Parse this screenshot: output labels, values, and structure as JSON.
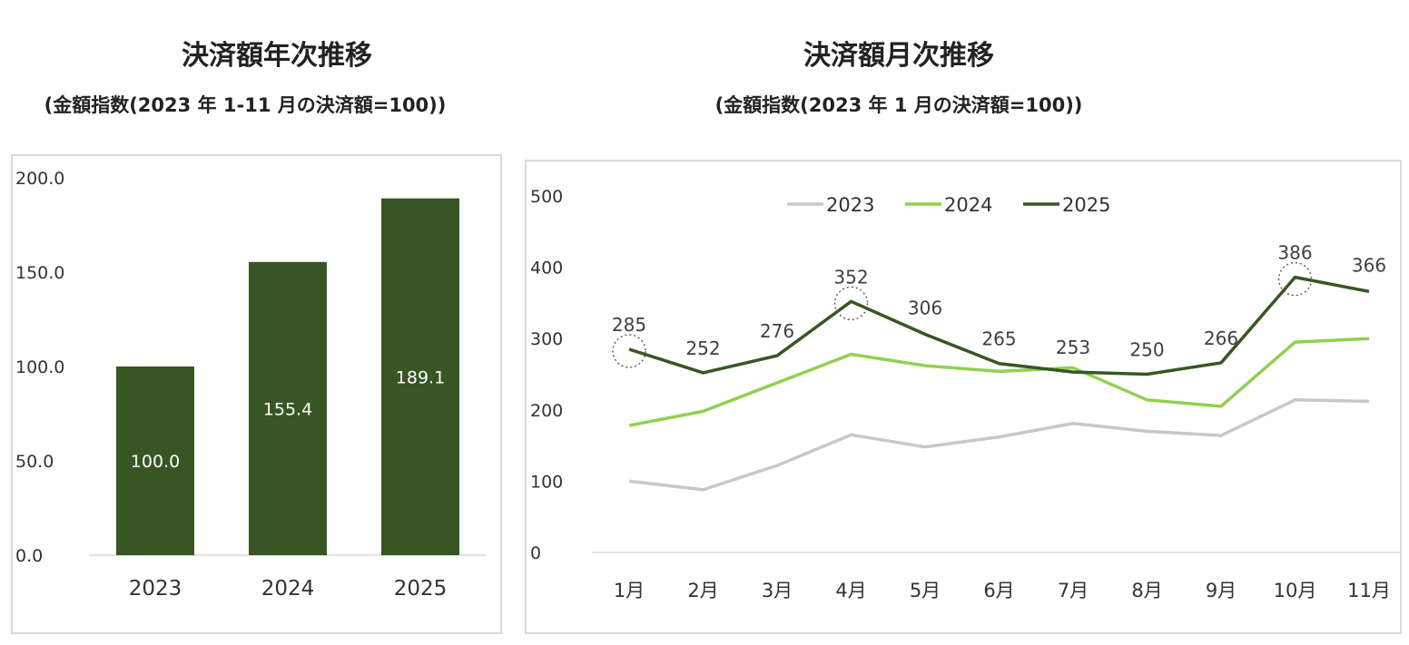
{
  "left": {
    "title": "決済額年次推移",
    "subtitle": "(金額指数(2023 年 1-11 月の決済額=100))"
  },
  "right": {
    "title": "決済額月次推移",
    "subtitle": "(金額指数(2023 年 1 月の決済額=100))"
  },
  "colors": {
    "bar": "#375623",
    "s2023": "#c8c8c8",
    "s2024": "#92d050",
    "s2025": "#375623",
    "axis": "#d9d9d9",
    "text": "#333333"
  },
  "chart_data": [
    {
      "type": "bar",
      "title": "決済額年次推移",
      "categories": [
        "2023",
        "2024",
        "2025"
      ],
      "values": [
        100.0,
        155.4,
        189.1
      ],
      "value_labels": [
        "100.0",
        "155.4",
        "189.1"
      ],
      "yticks": [
        "0.0",
        "50.0",
        "100.0",
        "150.0",
        "200.0"
      ],
      "ylim": [
        0,
        200
      ]
    },
    {
      "type": "line",
      "title": "決済額月次推移",
      "categories": [
        "1月",
        "2月",
        "3月",
        "4月",
        "5月",
        "6月",
        "7月",
        "8月",
        "9月",
        "10月",
        "11月"
      ],
      "yticks": [
        "0",
        "100",
        "200",
        "300",
        "400",
        "500"
      ],
      "ylim": [
        0,
        500
      ],
      "legend": "top",
      "series": [
        {
          "name": "2023",
          "values": [
            100,
            88,
            122,
            165,
            148,
            162,
            181,
            170,
            164,
            214,
            212
          ]
        },
        {
          "name": "2024",
          "values": [
            178,
            198,
            238,
            278,
            262,
            254,
            259,
            214,
            205,
            295,
            300
          ]
        },
        {
          "name": "2025",
          "values": [
            285,
            252,
            276,
            352,
            306,
            265,
            253,
            250,
            266,
            386,
            366
          ],
          "labels": [
            "285",
            "252",
            "276",
            "352",
            "306",
            "265",
            "253",
            "250",
            "266",
            "386",
            "366"
          ]
        }
      ],
      "highlighted": [
        "1月",
        "4月",
        "10月"
      ]
    }
  ]
}
